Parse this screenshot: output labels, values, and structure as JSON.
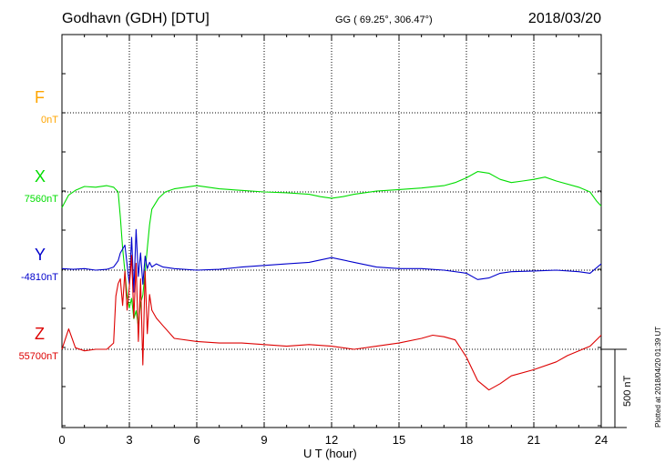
{
  "header": {
    "station": "Godhavn (GDH)  [DTU]",
    "coords": "GG ( 69.25°, 306.47°)",
    "date": "2018/03/20"
  },
  "footer": {
    "plotted": "Plotted at 2018/04/20 01:39 UT"
  },
  "colors": {
    "F": "#ffa500",
    "X": "#00dd00",
    "Y": "#0000cc",
    "Z": "#dd0000"
  },
  "chart_data": {
    "type": "line",
    "xlabel": "U T (hour)",
    "xlim": [
      0,
      24
    ],
    "xticks": [
      "0",
      "3",
      "6",
      "9",
      "12",
      "15",
      "18",
      "21",
      "24"
    ],
    "scale_bar": "500 nT",
    "components": [
      {
        "name": "F",
        "baseline": "0nT"
      },
      {
        "name": "X",
        "baseline": "7560nT"
      },
      {
        "name": "Y",
        "baseline": "-4810nT"
      },
      {
        "name": "Z",
        "baseline": "55700nT"
      }
    ],
    "series": [
      {
        "name": "X",
        "x": [
          0,
          0.3,
          0.6,
          1.0,
          1.5,
          2.0,
          2.3,
          2.5,
          2.6,
          2.7,
          2.8,
          2.9,
          3.0,
          3.1,
          3.2,
          3.3,
          3.4,
          3.5,
          3.6,
          3.7,
          3.8,
          3.9,
          4.0,
          4.3,
          4.6,
          5.0,
          6.0,
          7.0,
          8.0,
          9.0,
          10.0,
          11.0,
          11.5,
          12.0,
          12.5,
          13.0,
          14.0,
          15.0,
          16.0,
          17.0,
          17.5,
          18.0,
          18.5,
          19.0,
          19.5,
          20.0,
          20.5,
          21.0,
          21.5,
          22.0,
          23.0,
          23.5,
          23.8,
          24.0
        ],
        "y": [
          7460,
          7540,
          7570,
          7595,
          7590,
          7600,
          7590,
          7560,
          7400,
          7200,
          7050,
          6900,
          6820,
          6880,
          6750,
          6800,
          6700,
          6850,
          6900,
          7050,
          7200,
          7350,
          7450,
          7520,
          7560,
          7580,
          7600,
          7580,
          7570,
          7560,
          7555,
          7545,
          7530,
          7520,
          7530,
          7545,
          7565,
          7575,
          7585,
          7600,
          7620,
          7650,
          7690,
          7680,
          7640,
          7620,
          7630,
          7640,
          7655,
          7630,
          7590,
          7560,
          7500,
          7470
        ]
      },
      {
        "name": "Y",
        "x": [
          0,
          0.5,
          1.0,
          1.5,
          2.0,
          2.3,
          2.5,
          2.6,
          2.8,
          3.0,
          3.1,
          3.2,
          3.3,
          3.4,
          3.5,
          3.6,
          3.7,
          3.8,
          3.9,
          4.0,
          4.2,
          4.5,
          5.0,
          6.0,
          7.0,
          8.0,
          9.0,
          10.0,
          11.0,
          12.0,
          13.0,
          14.0,
          15.0,
          16.0,
          17.0,
          18.0,
          18.5,
          19.0,
          19.5,
          20.0,
          21.0,
          22.0,
          23.0,
          23.5,
          24.0
        ],
        "y": [
          -4800,
          -4805,
          -4800,
          -4810,
          -4805,
          -4790,
          -4750,
          -4700,
          -4650,
          -4900,
          -4600,
          -4950,
          -4550,
          -4850,
          -4700,
          -4900,
          -4720,
          -4800,
          -4760,
          -4790,
          -4770,
          -4790,
          -4800,
          -4810,
          -4805,
          -4790,
          -4780,
          -4770,
          -4760,
          -4730,
          -4760,
          -4790,
          -4800,
          -4800,
          -4810,
          -4830,
          -4870,
          -4860,
          -4830,
          -4820,
          -4815,
          -4810,
          -4820,
          -4830,
          -4770
        ]
      },
      {
        "name": "Z",
        "x": [
          0,
          0.3,
          0.6,
          1.0,
          1.5,
          2.0,
          2.3,
          2.4,
          2.5,
          2.6,
          2.7,
          2.8,
          2.9,
          3.0,
          3.1,
          3.2,
          3.3,
          3.4,
          3.5,
          3.6,
          3.7,
          3.8,
          3.9,
          4.0,
          4.2,
          4.5,
          5.0,
          6.0,
          7.0,
          8.0,
          9.0,
          10.0,
          11.0,
          12.0,
          13.0,
          14.0,
          15.0,
          16.0,
          16.5,
          17.0,
          17.5,
          18.0,
          18.5,
          19.0,
          19.5,
          20.0,
          21.0,
          22.0,
          22.5,
          23.0,
          23.5,
          24.0
        ],
        "y": [
          55700,
          55830,
          55710,
          55690,
          55700,
          55700,
          55740,
          56040,
          56120,
          56150,
          55980,
          56200,
          55950,
          56100,
          56300,
          55900,
          56250,
          55750,
          56150,
          55600,
          56200,
          55800,
          56050,
          55950,
          55900,
          55850,
          55770,
          55750,
          55740,
          55740,
          55730,
          55720,
          55730,
          55720,
          55700,
          55720,
          55740,
          55770,
          55790,
          55780,
          55760,
          55650,
          55500,
          55440,
          55480,
          55530,
          55570,
          55620,
          55660,
          55690,
          55720,
          55790
        ]
      }
    ]
  }
}
